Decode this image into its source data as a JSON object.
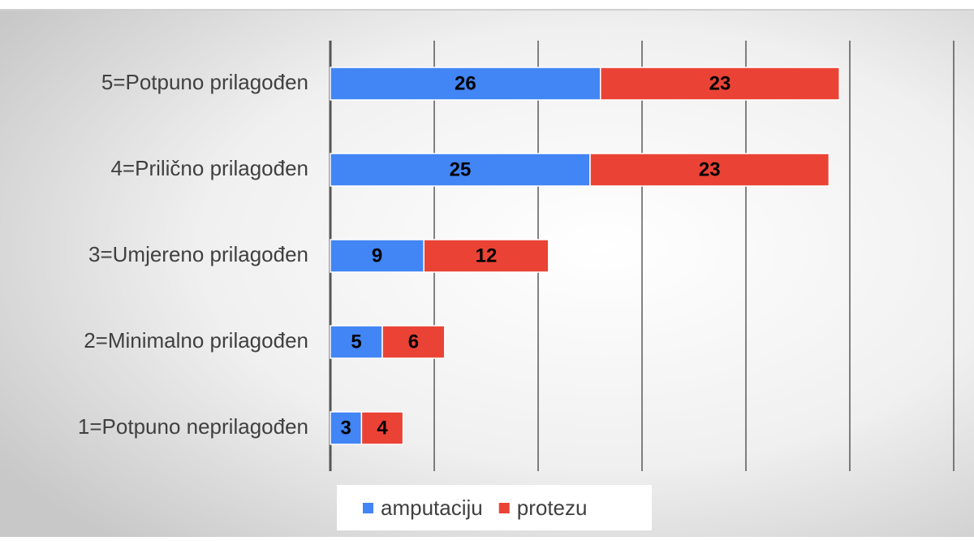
{
  "chart_data": {
    "type": "stacked_barh",
    "categories": [
      "5=Potpuno prilagođen",
      "4=Prilično prilagođen",
      "3=Umjereno prilagođen",
      "2=Minimalno prilagođen",
      "1=Potpuno neprilagođen"
    ],
    "series": [
      {
        "name": "amputaciju",
        "color": "#4285f4",
        "values": [
          26,
          25,
          9,
          5,
          3
        ]
      },
      {
        "name": "protezu",
        "color": "#ea4335",
        "values": [
          23,
          23,
          12,
          6,
          4
        ]
      }
    ],
    "xlim": [
      0,
      60
    ],
    "xticks": [
      0,
      10,
      20,
      30,
      40,
      50,
      60
    ],
    "grid": true,
    "legend": "bottom"
  }
}
